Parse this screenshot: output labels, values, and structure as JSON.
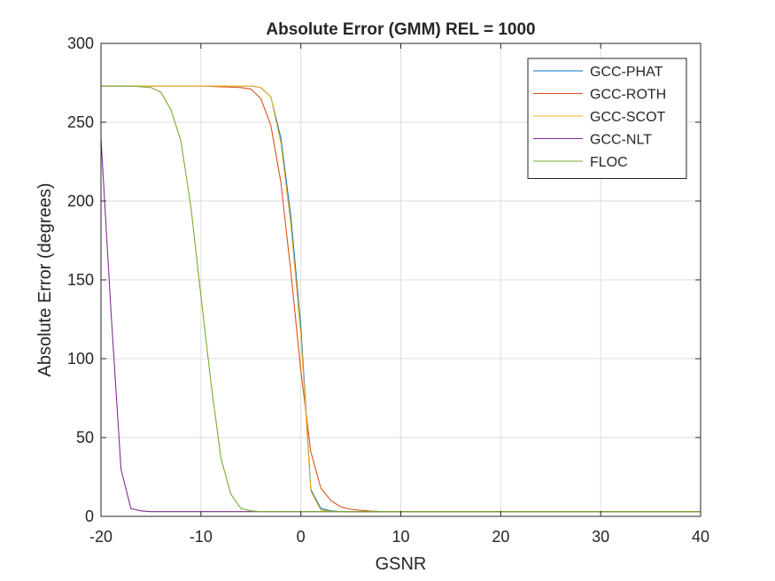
{
  "chart_data": {
    "type": "line",
    "title": "Absolute Error (GMM) REL = 1000",
    "xlabel": "GSNR",
    "ylabel": "Absolute Error (degrees)",
    "xlim": [
      -20,
      40
    ],
    "ylim": [
      0,
      300
    ],
    "xticks": [
      -20,
      -10,
      0,
      10,
      20,
      30,
      40
    ],
    "yticks": [
      0,
      50,
      100,
      150,
      200,
      250,
      300
    ],
    "x_tick_labels": [
      "-20",
      "-10",
      "0",
      "10",
      "20",
      "30",
      "40"
    ],
    "y_tick_labels": [
      "0",
      "50",
      "100",
      "150",
      "200",
      "250",
      "300"
    ],
    "grid": true,
    "legend_position": "top-right",
    "series": [
      {
        "name": "GCC-PHAT",
        "color": "#0072BD",
        "x": [
          -20,
          -15,
          -10,
          -6,
          -5,
          -4,
          -3,
          -2,
          -1,
          0,
          1,
          2,
          3,
          4,
          5,
          10,
          20,
          30,
          40
        ],
        "y": [
          273,
          273,
          273,
          273,
          273,
          272,
          266,
          240,
          190,
          120,
          17,
          5,
          3.5,
          3,
          3,
          3,
          3,
          3,
          3
        ]
      },
      {
        "name": "GCC-ROTH",
        "color": "#D95319",
        "x": [
          -20,
          -15,
          -10,
          -6,
          -5,
          -4,
          -3,
          -2,
          -1,
          0,
          1,
          2,
          3,
          4,
          5,
          6,
          7,
          8,
          10,
          20,
          30,
          40
        ],
        "y": [
          273,
          273,
          273,
          272,
          271,
          265,
          248,
          212,
          155,
          92,
          41,
          18,
          10,
          6,
          4.5,
          3.8,
          3.3,
          3.1,
          3,
          3,
          3,
          3
        ]
      },
      {
        "name": "GCC-SCOT",
        "color": "#EDB120",
        "x": [
          -20,
          -15,
          -10,
          -6,
          -5,
          -4,
          -3,
          -2,
          -1,
          0,
          1,
          2,
          3,
          4,
          5,
          10,
          20,
          30,
          40
        ],
        "y": [
          273,
          273,
          273,
          273,
          273,
          272,
          266,
          237,
          185,
          115,
          16,
          4,
          3.2,
          3,
          3,
          3,
          3,
          3,
          3
        ]
      },
      {
        "name": "GCC-NLT",
        "color": "#7E2F8E",
        "x": [
          -20,
          -19,
          -18,
          -17,
          -16,
          -15,
          -10,
          0,
          10,
          20,
          30,
          40
        ],
        "y": [
          240,
          130,
          30,
          5,
          3.5,
          3,
          3,
          3,
          3,
          3,
          3,
          3
        ]
      },
      {
        "name": "FLOC",
        "color": "#77AC30",
        "x": [
          -20,
          -17,
          -15,
          -14,
          -13,
          -12,
          -11,
          -10,
          -9,
          -8,
          -7,
          -6,
          -5,
          -4,
          0,
          10,
          20,
          30,
          40
        ],
        "y": [
          273,
          273,
          272,
          269,
          258,
          238,
          196,
          140,
          85,
          37,
          14,
          5,
          3.5,
          3,
          3,
          3,
          3,
          3,
          3
        ]
      }
    ]
  }
}
